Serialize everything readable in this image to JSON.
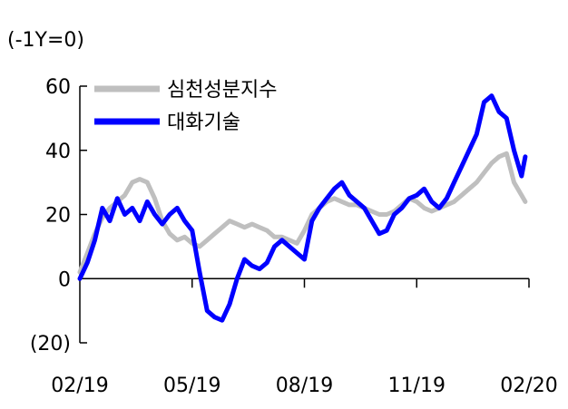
{
  "chart_data": {
    "type": "line",
    "unit_label": "(-1Y=0)",
    "ylim": [
      -20,
      60
    ],
    "yticks": [
      {
        "value": 60,
        "label": "60"
      },
      {
        "value": 40,
        "label": "40"
      },
      {
        "value": 20,
        "label": "20"
      },
      {
        "value": 0,
        "label": "0"
      },
      {
        "value": -20,
        "label": "(20)"
      }
    ],
    "xlim": [
      0,
      12
    ],
    "xticks": [
      {
        "value": 0,
        "label": "02/19"
      },
      {
        "value": 3,
        "label": "05/19"
      },
      {
        "value": 6,
        "label": "08/19"
      },
      {
        "value": 9,
        "label": "11/19"
      },
      {
        "value": 12,
        "label": "02/20"
      }
    ],
    "legend_position": "top-left",
    "series": [
      {
        "name": "심천성분지수",
        "color": "#bfbfbf",
        "x": [
          0,
          0.2,
          0.4,
          0.6,
          0.8,
          1.0,
          1.2,
          1.4,
          1.6,
          1.8,
          2.0,
          2.2,
          2.4,
          2.6,
          2.8,
          3.0,
          3.2,
          3.4,
          3.6,
          3.8,
          4.0,
          4.2,
          4.4,
          4.6,
          4.8,
          5.0,
          5.2,
          5.4,
          5.6,
          5.8,
          6.0,
          6.2,
          6.4,
          6.6,
          6.8,
          7.0,
          7.2,
          7.4,
          7.6,
          7.8,
          8.0,
          8.2,
          8.4,
          8.6,
          8.8,
          9.0,
          9.2,
          9.4,
          9.6,
          9.8,
          10.0,
          10.2,
          10.4,
          10.6,
          10.8,
          11.0,
          11.2,
          11.4,
          11.6,
          11.8,
          11.9
        ],
        "values": [
          2,
          8,
          14,
          19,
          22,
          24,
          26,
          30,
          31,
          30,
          25,
          18,
          14,
          12,
          13,
          11,
          10,
          12,
          14,
          16,
          18,
          17,
          16,
          17,
          16,
          15,
          13,
          13,
          12,
          11,
          15,
          20,
          22,
          24,
          25,
          24,
          23,
          23,
          22,
          21,
          20,
          20,
          21,
          23,
          25,
          24,
          22,
          21,
          22,
          23,
          24,
          26,
          28,
          30,
          33,
          36,
          38,
          39,
          30,
          26,
          24
        ]
      },
      {
        "name": "대화기술",
        "color": "#0000ff",
        "x": [
          0,
          0.2,
          0.4,
          0.6,
          0.8,
          1.0,
          1.2,
          1.4,
          1.6,
          1.8,
          2.0,
          2.2,
          2.4,
          2.6,
          2.8,
          3.0,
          3.2,
          3.4,
          3.6,
          3.8,
          4.0,
          4.2,
          4.4,
          4.6,
          4.8,
          5.0,
          5.2,
          5.4,
          5.6,
          5.8,
          6.0,
          6.2,
          6.4,
          6.6,
          6.8,
          7.0,
          7.2,
          7.4,
          7.6,
          7.8,
          8.0,
          8.2,
          8.4,
          8.6,
          8.8,
          9.0,
          9.2,
          9.4,
          9.6,
          9.8,
          10.0,
          10.2,
          10.4,
          10.6,
          10.8,
          11.0,
          11.2,
          11.4,
          11.6,
          11.8,
          11.9
        ],
        "values": [
          0,
          5,
          12,
          22,
          18,
          25,
          20,
          22,
          18,
          24,
          20,
          17,
          20,
          22,
          18,
          15,
          2,
          -10,
          -12,
          -13,
          -8,
          0,
          6,
          4,
          3,
          5,
          10,
          12,
          10,
          8,
          6,
          18,
          22,
          25,
          28,
          30,
          26,
          24,
          22,
          18,
          14,
          15,
          20,
          22,
          25,
          26,
          28,
          24,
          22,
          25,
          30,
          35,
          40,
          45,
          55,
          57,
          52,
          50,
          40,
          32,
          38
        ]
      }
    ]
  }
}
